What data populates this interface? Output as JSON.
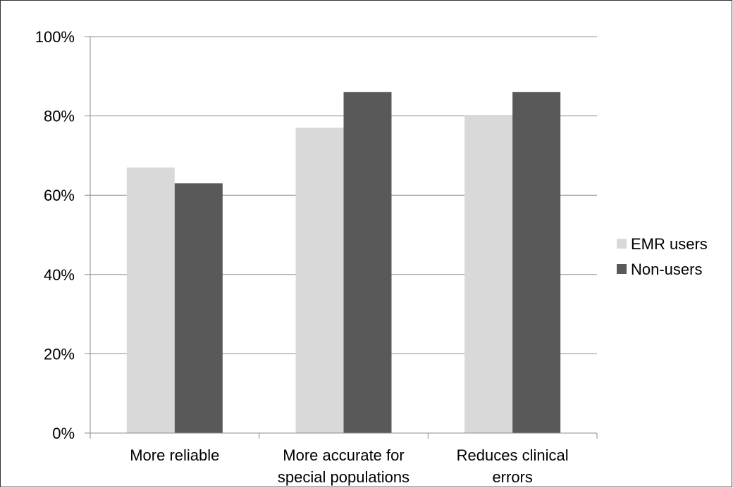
{
  "chart_data": {
    "type": "bar",
    "categories": [
      [
        "More reliable"
      ],
      [
        "More accurate for",
        "special populations"
      ],
      [
        "Reduces clinical",
        "errors"
      ]
    ],
    "series": [
      {
        "name": "EMR users",
        "values": [
          67,
          77,
          80
        ],
        "color": "#d9d9d9"
      },
      {
        "name": "Non-users",
        "values": [
          63,
          86,
          86
        ],
        "color": "#595959"
      }
    ],
    "ylim": [
      0,
      100
    ],
    "yticks": [
      0,
      20,
      40,
      60,
      80,
      100
    ],
    "ytick_format": "percent",
    "grid": true,
    "legend_position": "right",
    "title": "",
    "xlabel": "",
    "ylabel": ""
  }
}
